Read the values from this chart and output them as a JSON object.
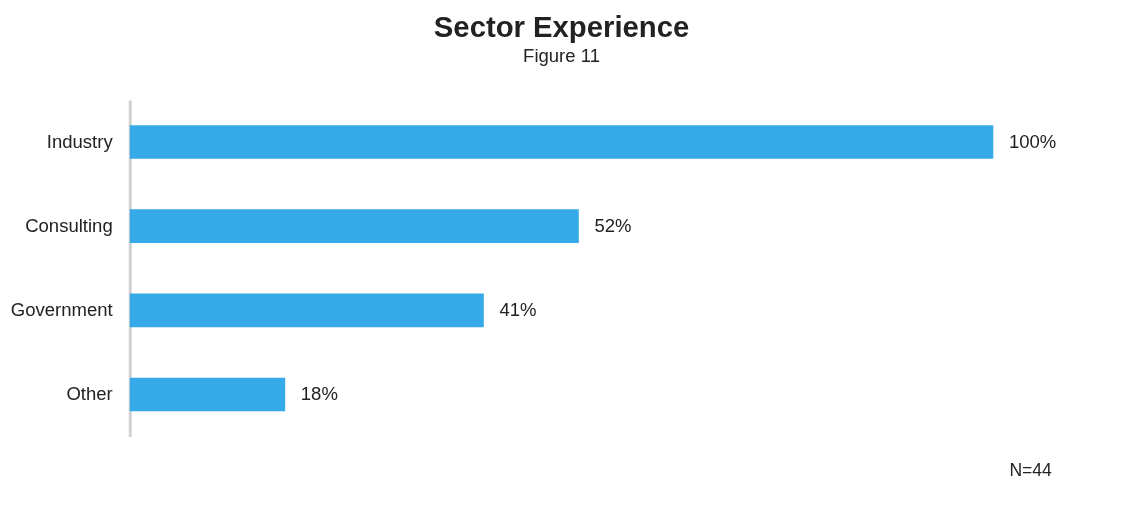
{
  "chart_data": {
    "type": "bar",
    "orientation": "horizontal",
    "title": "Sector Experience",
    "subtitle": "Figure 11",
    "categories": [
      "Industry",
      "Consulting",
      "Government",
      "Other"
    ],
    "values": [
      100,
      52,
      41,
      18
    ],
    "value_labels": [
      "100%",
      "52%",
      "41%",
      "18%"
    ],
    "color": "#36a9e8",
    "annotations": [
      "N=44"
    ]
  }
}
